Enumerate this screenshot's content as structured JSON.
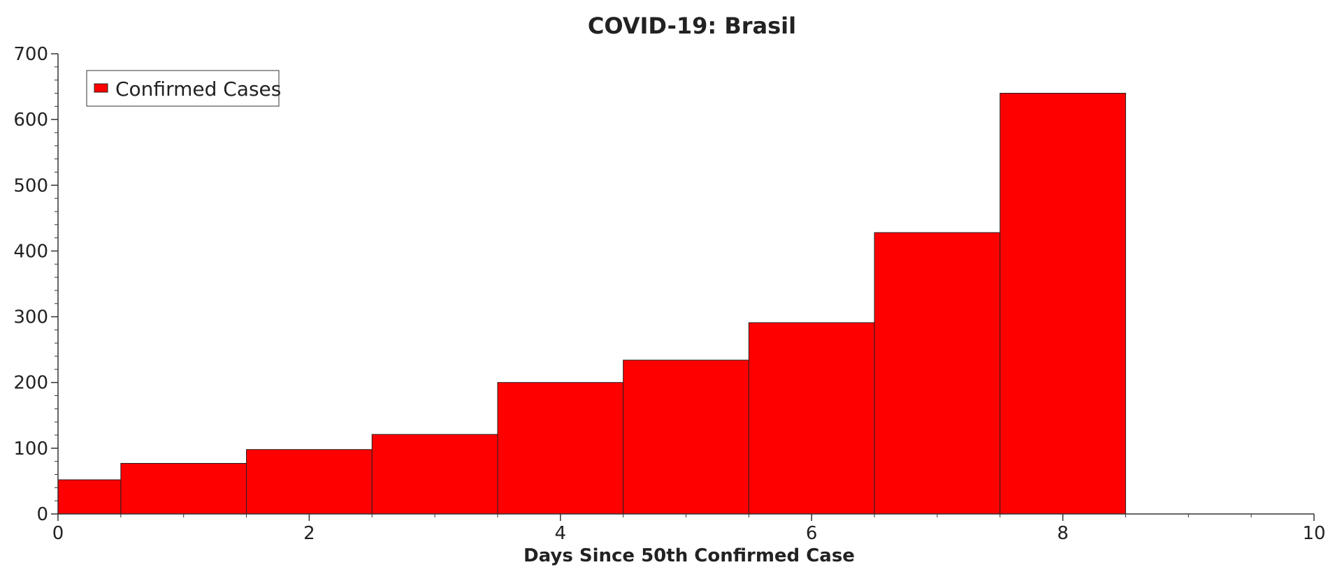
{
  "chart_data": {
    "type": "bar",
    "title": "COVID-19: Brasil",
    "xlabel": "Days Since 50th Confirmed Case",
    "ylabel": "",
    "x": [
      0,
      1,
      2,
      3,
      4,
      5,
      6,
      7,
      8
    ],
    "xlim": [
      0,
      10
    ],
    "ylim": [
      0,
      700
    ],
    "x_ticks": [
      0,
      2,
      4,
      6,
      8,
      10
    ],
    "y_ticks": [
      0,
      100,
      200,
      300,
      400,
      500,
      600,
      700
    ],
    "grid": false,
    "legend_position": "top-left",
    "series": [
      {
        "name": "Confirmed Cases",
        "color": "#ff0000",
        "values": [
          52,
          77,
          98,
          121,
          200,
          234,
          291,
          428,
          640
        ]
      }
    ]
  }
}
